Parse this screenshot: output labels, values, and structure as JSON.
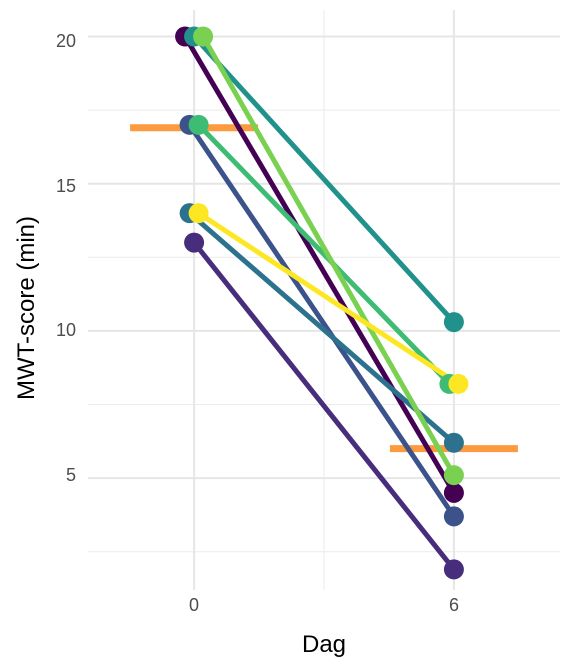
{
  "chart_data": {
    "type": "line",
    "xlabel": "Dag",
    "ylabel": "MWT-score (min)",
    "x_ticks": [
      "0",
      "6"
    ],
    "y_ticks": [
      "5",
      "10",
      "15",
      "20"
    ],
    "xlim": [
      -2.45,
      8.45
    ],
    "ylim": [
      1.2,
      20.9
    ],
    "grid": true,
    "legend": "none",
    "series": [
      {
        "color": "#440154",
        "values": [
          [
            0,
            20
          ],
          [
            6,
            4.5
          ]
        ]
      },
      {
        "color": "#472d7b",
        "values": [
          [
            0,
            13
          ],
          [
            6,
            1.9
          ]
        ]
      },
      {
        "color": "#3b528b",
        "values": [
          [
            0,
            17
          ],
          [
            6,
            3.7
          ]
        ]
      },
      {
        "color": "#2c728e",
        "values": [
          [
            0,
            14
          ],
          [
            6,
            6.2
          ]
        ]
      },
      {
        "color": "#21918c",
        "values": [
          [
            0,
            20
          ],
          [
            6,
            10.3
          ]
        ]
      },
      {
        "color": "#3fbc73",
        "values": [
          [
            0,
            17
          ],
          [
            6,
            8.2
          ]
        ]
      },
      {
        "color": "#7ad151",
        "values": [
          [
            0,
            20
          ],
          [
            6,
            5.1
          ]
        ]
      },
      {
        "color": "#fde725",
        "values": [
          [
            0,
            14
          ],
          [
            6,
            8.2
          ]
        ]
      }
    ],
    "mean_bars": {
      "color": "#fb9a3e",
      "values": [
        [
          0,
          16.9
        ],
        [
          6,
          6.0
        ]
      ]
    }
  }
}
